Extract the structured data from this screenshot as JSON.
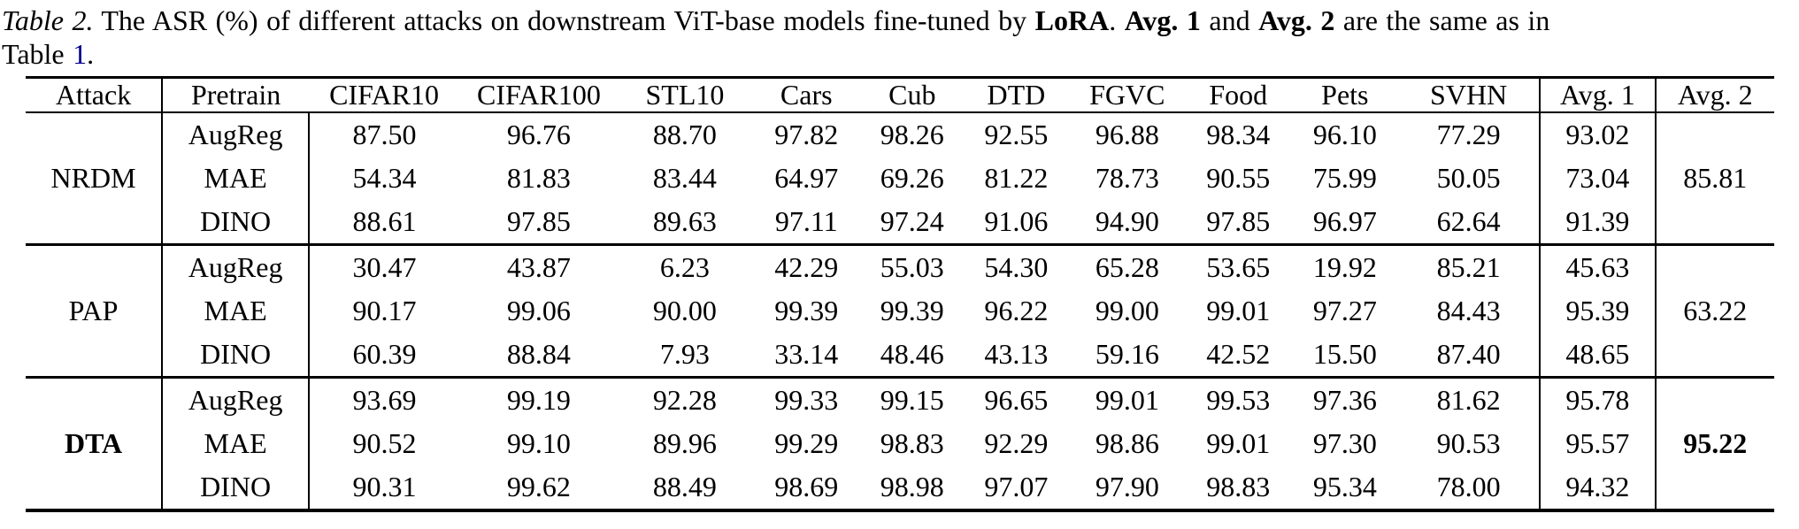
{
  "caption": {
    "line1": [
      {
        "t": "Table 2.",
        "i": true
      },
      {
        "t": " The ASR (%) of different attacks on downstream ViT-base models fine-tuned by "
      },
      {
        "t": "LoRA",
        "b": true
      },
      {
        "t": ". "
      },
      {
        "t": "Avg. 1",
        "b": true
      },
      {
        "t": " and "
      },
      {
        "t": "Avg. 2",
        "b": true
      },
      {
        "t": " are the same as in"
      }
    ],
    "line2": [
      {
        "t": "Table "
      },
      {
        "t": "1",
        "link": true
      },
      {
        "t": "."
      }
    ]
  },
  "colors": {
    "text": "#000000",
    "background": "#FFFFFF",
    "link": "#00008B"
  },
  "chart_data": {
    "type": "table",
    "title": "The ASR (%) of different attacks on downstream ViT-base models fine-tuned by LoRA",
    "columns": [
      "Attack",
      "Pretrain",
      "CIFAR10",
      "CIFAR100",
      "STL10",
      "Cars",
      "Cub",
      "DTD",
      "FGVC",
      "Food",
      "Pets",
      "SVHN",
      "Avg. 1",
      "Avg. 2"
    ],
    "groups": [
      {
        "attack": "NRDM",
        "attack_bold": false,
        "avg2": "85.81",
        "avg2_bold": false,
        "rows": [
          {
            "pretrain": "AugReg",
            "values": [
              "87.50",
              "96.76",
              "88.70",
              "97.82",
              "98.26",
              "92.55",
              "96.88",
              "98.34",
              "96.10",
              "77.29"
            ],
            "avg1": "93.02"
          },
          {
            "pretrain": "MAE",
            "values": [
              "54.34",
              "81.83",
              "83.44",
              "64.97",
              "69.26",
              "81.22",
              "78.73",
              "90.55",
              "75.99",
              "50.05"
            ],
            "avg1": "73.04"
          },
          {
            "pretrain": "DINO",
            "values": [
              "88.61",
              "97.85",
              "89.63",
              "97.11",
              "97.24",
              "91.06",
              "94.90",
              "97.85",
              "96.97",
              "62.64"
            ],
            "avg1": "91.39"
          }
        ]
      },
      {
        "attack": "PAP",
        "attack_bold": false,
        "avg2": "63.22",
        "avg2_bold": false,
        "rows": [
          {
            "pretrain": "AugReg",
            "values": [
              "30.47",
              "43.87",
              "6.23",
              "42.29",
              "55.03",
              "54.30",
              "65.28",
              "53.65",
              "19.92",
              "85.21"
            ],
            "avg1": "45.63"
          },
          {
            "pretrain": "MAE",
            "values": [
              "90.17",
              "99.06",
              "90.00",
              "99.39",
              "99.39",
              "96.22",
              "99.00",
              "99.01",
              "97.27",
              "84.43"
            ],
            "avg1": "95.39"
          },
          {
            "pretrain": "DINO",
            "values": [
              "60.39",
              "88.84",
              "7.93",
              "33.14",
              "48.46",
              "43.13",
              "59.16",
              "42.52",
              "15.50",
              "87.40"
            ],
            "avg1": "48.65"
          }
        ]
      },
      {
        "attack": "DTA",
        "attack_bold": true,
        "avg2": "95.22",
        "avg2_bold": true,
        "rows": [
          {
            "pretrain": "AugReg",
            "values": [
              "93.69",
              "99.19",
              "92.28",
              "99.33",
              "99.15",
              "96.65",
              "99.01",
              "99.53",
              "97.36",
              "81.62"
            ],
            "avg1": "95.78"
          },
          {
            "pretrain": "MAE",
            "values": [
              "90.52",
              "99.10",
              "89.96",
              "99.29",
              "98.83",
              "92.29",
              "98.86",
              "99.01",
              "97.30",
              "90.53"
            ],
            "avg1": "95.57"
          },
          {
            "pretrain": "DINO",
            "values": [
              "90.31",
              "99.62",
              "88.49",
              "98.69",
              "98.98",
              "97.07",
              "97.90",
              "98.83",
              "95.34",
              "78.00"
            ],
            "avg1": "94.32"
          }
        ]
      }
    ]
  }
}
